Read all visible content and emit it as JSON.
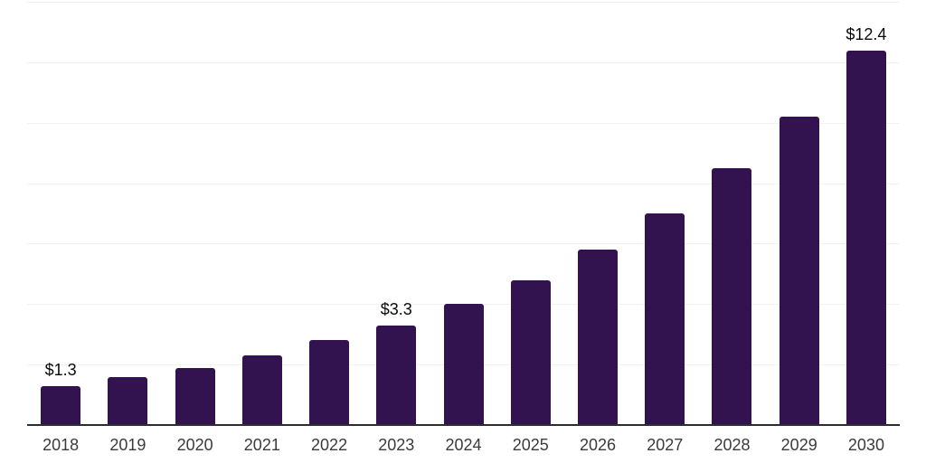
{
  "chart_data": {
    "type": "bar",
    "title": "",
    "xlabel": "",
    "ylabel": "",
    "categories": [
      "2018",
      "2019",
      "2020",
      "2021",
      "2022",
      "2023",
      "2024",
      "2025",
      "2026",
      "2027",
      "2028",
      "2029",
      "2030"
    ],
    "values": [
      1.3,
      1.6,
      1.9,
      2.3,
      2.8,
      3.3,
      4.0,
      4.8,
      5.8,
      7.0,
      8.5,
      10.2,
      12.4
    ],
    "bar_labels": [
      "$1.3",
      null,
      null,
      null,
      null,
      "$3.3",
      null,
      null,
      null,
      null,
      null,
      null,
      "$12.4"
    ],
    "ylim": [
      0,
      14
    ],
    "grid_step": 2,
    "grid": true,
    "legend": false,
    "y_tick_labels_visible": false,
    "colors": {
      "background": "#ffffff",
      "bar": "#331250",
      "grid_line": "#f3f1f4",
      "axis_line": "#2e2c33",
      "value_label": "#0a0a0a",
      "category_label": "#3b3b3b"
    }
  }
}
